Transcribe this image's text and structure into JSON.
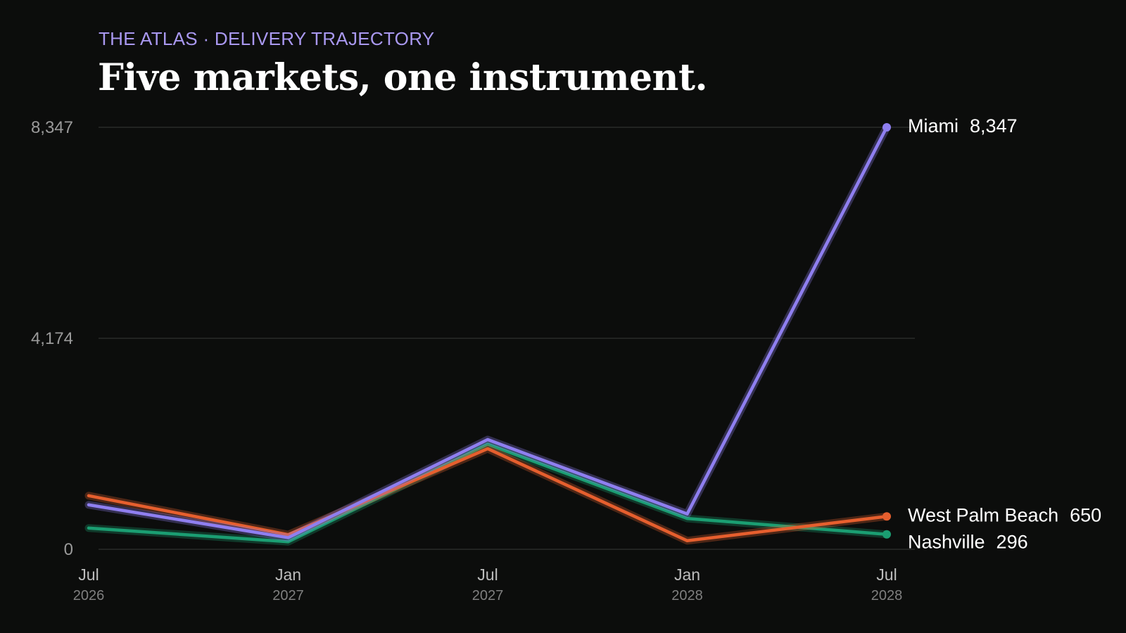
{
  "kicker": "THE ATLAS · DELIVERY TRAJECTORY",
  "headline": "Five markets, one instrument.",
  "chart_data": {
    "type": "line",
    "title": "Five markets, one instrument.",
    "subtitle": "THE ATLAS · DELIVERY TRAJECTORY",
    "xlabel": "",
    "ylabel": "",
    "x": [
      "2026-07",
      "2027-01",
      "2027-07",
      "2028-01",
      "2028-07"
    ],
    "x_ticks": [
      {
        "month": "Jul",
        "year": "2026"
      },
      {
        "month": "Jan",
        "year": "2027"
      },
      {
        "month": "Jul",
        "year": "2027"
      },
      {
        "month": "Jan",
        "year": "2028"
      },
      {
        "month": "Jul",
        "year": "2028"
      }
    ],
    "ylim": [
      0,
      8347
    ],
    "y_ticks": [
      {
        "value": 0,
        "label": "0"
      },
      {
        "value": 4174,
        "label": "4,174"
      },
      {
        "value": 8347,
        "label": "8,347"
      }
    ],
    "grid": true,
    "legend": "direct labels at line ends",
    "series": [
      {
        "name": "Miami",
        "end_label": "8,347",
        "color": "#8f7ff0",
        "values": [
          880,
          230,
          2170,
          700,
          8347
        ]
      },
      {
        "name": "West Palm Beach",
        "end_label": "650",
        "color": "#e65f2e",
        "values": [
          1060,
          290,
          1990,
          170,
          650
        ]
      },
      {
        "name": "Nashville",
        "end_label": "296",
        "color": "#1b9e72",
        "values": [
          420,
          150,
          2080,
          610,
          296
        ]
      }
    ]
  }
}
